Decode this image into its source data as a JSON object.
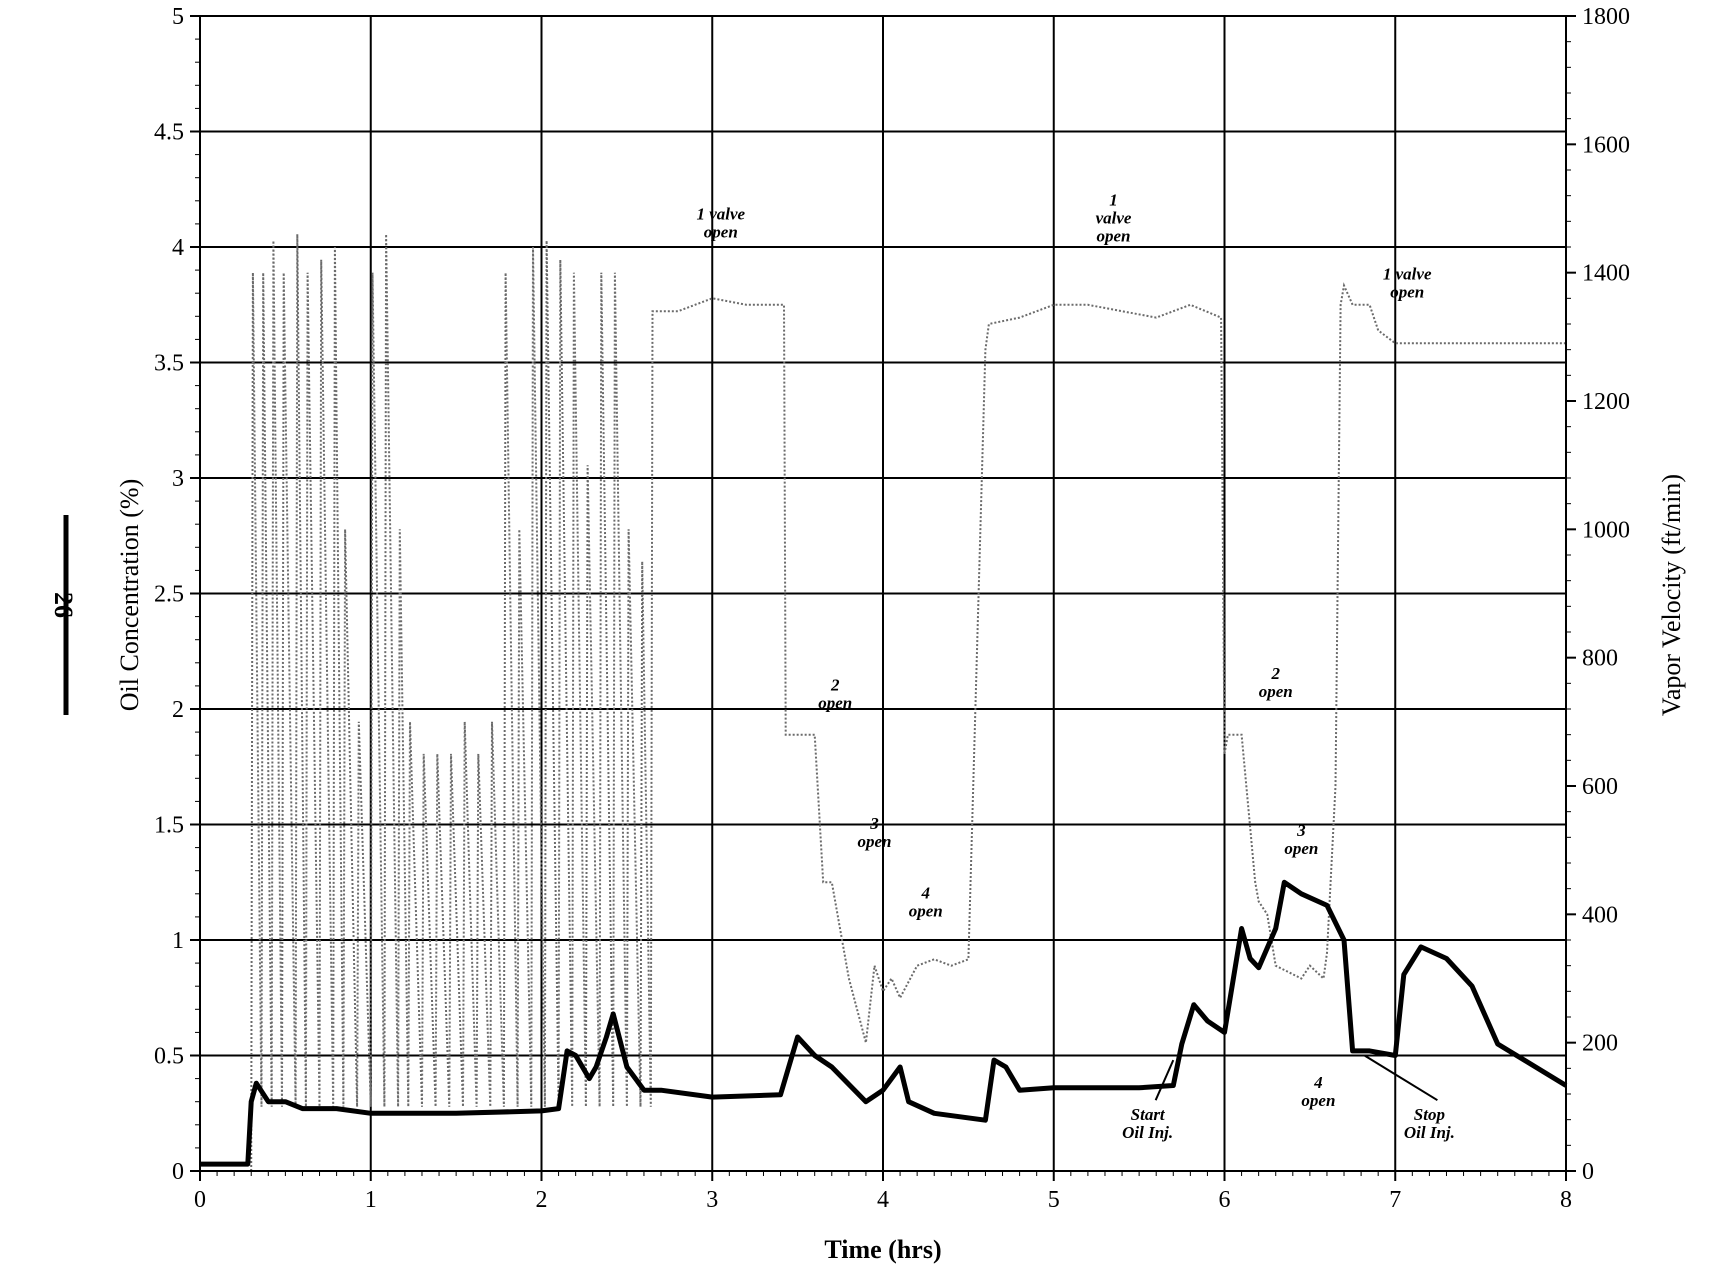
{
  "page_number": "26",
  "chart_data": {
    "type": "line",
    "title": "",
    "xlabel": "Time (hrs)",
    "ylabel_left": "Oil Concentration (%)",
    "ylabel_right": "Vapor Velocity (ft/min)",
    "xlim": [
      0,
      8
    ],
    "ylim_left": [
      0,
      5
    ],
    "ylim_right": [
      0,
      1800
    ],
    "xticks": [
      "0",
      "1",
      "2",
      "3",
      "4",
      "5",
      "6",
      "7",
      "8"
    ],
    "yticks_left": [
      "0",
      "0.5",
      "1",
      "1.5",
      "2",
      "2.5",
      "3",
      "3.5",
      "4",
      "4.5",
      "5"
    ],
    "yticks_right": [
      "0",
      "200",
      "400",
      "600",
      "800",
      "1000",
      "1200",
      "1400",
      "1600",
      "1800"
    ],
    "grid": true,
    "series": [
      {
        "axis": "left",
        "style": "solid-thick",
        "color": "#000000",
        "x": [
          0,
          0.28,
          0.3,
          0.33,
          0.4,
          0.5,
          0.6,
          0.8,
          1.0,
          1.5,
          2.0,
          2.1,
          2.15,
          2.2,
          2.28,
          2.32,
          2.38,
          2.42,
          2.5,
          2.6,
          2.7,
          3.0,
          3.4,
          3.5,
          3.6,
          3.7,
          3.9,
          4.0,
          4.1,
          4.15,
          4.3,
          4.6,
          4.65,
          4.72,
          4.8,
          5.0,
          5.5,
          5.7,
          5.75,
          5.82,
          5.9,
          6.0,
          6.1,
          6.15,
          6.2,
          6.3,
          6.35,
          6.45,
          6.6,
          6.7,
          6.75,
          6.85,
          7.0,
          7.05,
          7.15,
          7.3,
          7.45,
          7.6,
          8.0
        ],
        "y": [
          0.03,
          0.03,
          0.3,
          0.38,
          0.3,
          0.3,
          0.27,
          0.27,
          0.25,
          0.25,
          0.26,
          0.27,
          0.52,
          0.5,
          0.4,
          0.45,
          0.58,
          0.68,
          0.45,
          0.35,
          0.35,
          0.32,
          0.33,
          0.58,
          0.5,
          0.45,
          0.3,
          0.35,
          0.45,
          0.3,
          0.25,
          0.22,
          0.48,
          0.45,
          0.35,
          0.36,
          0.36,
          0.37,
          0.55,
          0.72,
          0.65,
          0.6,
          1.05,
          0.92,
          0.88,
          1.05,
          1.25,
          1.2,
          1.15,
          1.0,
          0.52,
          0.52,
          0.5,
          0.85,
          0.97,
          0.92,
          0.8,
          0.55,
          0.37
        ]
      },
      {
        "axis": "right",
        "style": "dotted-grey",
        "color": "#6b6b6b",
        "x": [
          0.3,
          0.31,
          0.36,
          0.37,
          0.42,
          0.43,
          0.48,
          0.49,
          0.56,
          0.57,
          0.62,
          0.63,
          0.7,
          0.71,
          0.78,
          0.79,
          0.84,
          0.85,
          0.92,
          0.93,
          1.0,
          1.01,
          1.08,
          1.09,
          1.16,
          1.17,
          1.22,
          1.23,
          1.3,
          1.31,
          1.38,
          1.39,
          1.46,
          1.47,
          1.54,
          1.55,
          1.62,
          1.63,
          1.7,
          1.71,
          1.78,
          1.79,
          1.86,
          1.87,
          1.94,
          1.95,
          2.02,
          2.03,
          2.1,
          2.11,
          2.18,
          2.19,
          2.26,
          2.27,
          2.34,
          2.35,
          2.42,
          2.43,
          2.5,
          2.51,
          2.58,
          2.59,
          2.64,
          2.65,
          2.8,
          3.0,
          3.2,
          3.42,
          3.43,
          3.5,
          3.55,
          3.6,
          3.65,
          3.7,
          3.8,
          3.85,
          3.9,
          3.95,
          4.0,
          4.05,
          4.1,
          4.2,
          4.3,
          4.4,
          4.5,
          4.6,
          4.62,
          4.8,
          5.0,
          5.2,
          5.4,
          5.6,
          5.8,
          5.98,
          6.0,
          6.02,
          6.1,
          6.18,
          6.2,
          6.25,
          6.3,
          6.45,
          6.5,
          6.58,
          6.6,
          6.65,
          6.68,
          6.7,
          6.75,
          6.85,
          6.9,
          7.0,
          7.2,
          7.5,
          8.0
        ],
        "y": [
          0,
          1400,
          100,
          1400,
          100,
          1450,
          100,
          1400,
          100,
          1460,
          100,
          1400,
          100,
          1420,
          100,
          1440,
          100,
          1000,
          100,
          700,
          100,
          1400,
          100,
          1460,
          100,
          1000,
          100,
          700,
          100,
          650,
          100,
          650,
          100,
          650,
          100,
          700,
          100,
          650,
          100,
          700,
          100,
          1400,
          100,
          1000,
          100,
          1440,
          100,
          1450,
          100,
          1420,
          100,
          1400,
          100,
          1100,
          100,
          1400,
          100,
          1400,
          100,
          1000,
          100,
          950,
          100,
          1340,
          1340,
          1360,
          1350,
          1350,
          680,
          680,
          680,
          680,
          450,
          450,
          300,
          250,
          200,
          320,
          280,
          300,
          270,
          320,
          330,
          320,
          330,
          1280,
          1320,
          1330,
          1350,
          1350,
          1340,
          1330,
          1350,
          1330,
          650,
          680,
          680,
          450,
          420,
          400,
          320,
          300,
          320,
          300,
          340,
          600,
          1350,
          1380,
          1350,
          1350,
          1310,
          1290,
          1290,
          1290,
          1290
        ]
      }
    ],
    "annotations": [
      {
        "lines": [
          "1 valve",
          "open"
        ],
        "x": 3.05,
        "y": 4.12
      },
      {
        "lines": [
          "2",
          "open"
        ],
        "x": 3.72,
        "y": 2.08
      },
      {
        "lines": [
          "3",
          "open"
        ],
        "x": 3.95,
        "y": 1.48
      },
      {
        "lines": [
          "4",
          "open"
        ],
        "x": 4.25,
        "y": 1.18
      },
      {
        "lines": [
          "1",
          "valve",
          "open"
        ],
        "x": 5.35,
        "y": 4.18
      },
      {
        "lines": [
          "2",
          "open"
        ],
        "x": 6.3,
        "y": 2.13
      },
      {
        "lines": [
          "3",
          "open"
        ],
        "x": 6.45,
        "y": 1.45
      },
      {
        "lines": [
          "4",
          "open"
        ],
        "x": 6.55,
        "y": 0.36
      },
      {
        "lines": [
          "1 valve",
          "open"
        ],
        "x": 7.07,
        "y": 3.86
      },
      {
        "lines": [
          "Start",
          "Oil Inj."
        ],
        "x": 5.55,
        "y": 0.22,
        "arrow_to": [
          5.7,
          0.48
        ]
      },
      {
        "lines": [
          "Stop",
          "Oil Inj."
        ],
        "x": 7.2,
        "y": 0.22,
        "arrow_to": [
          6.82,
          0.5
        ]
      }
    ]
  }
}
